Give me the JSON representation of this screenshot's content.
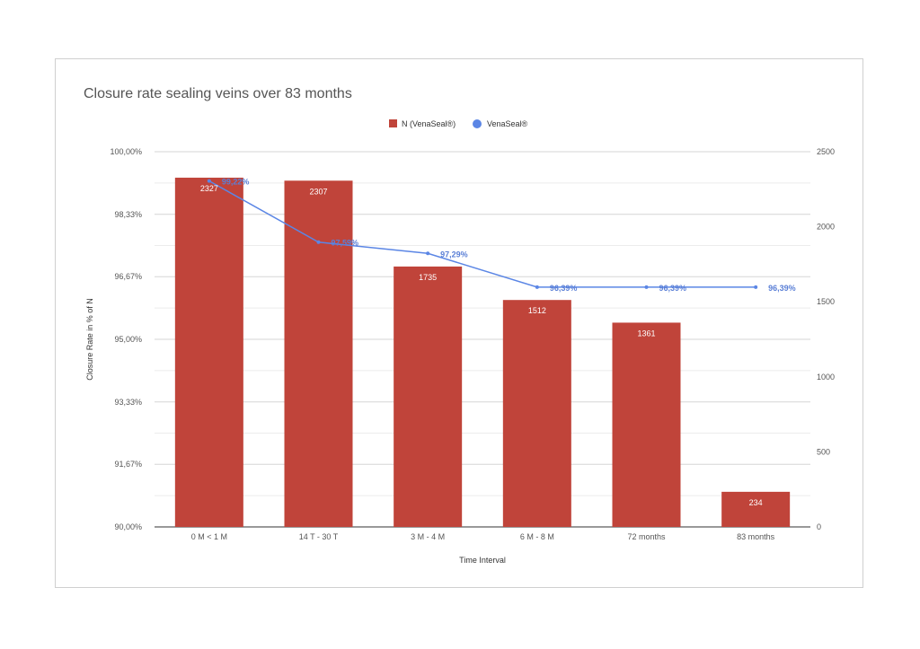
{
  "chart_data": {
    "type": "bar",
    "title": "Closure rate sealing veins over 83 months",
    "xlabel": "Time Interval",
    "ylabel": "Closure Rate in % of N",
    "categories": [
      "0 M < 1 M",
      "14 T - 30 T",
      "3 M - 4 M",
      "6 M - 8 M",
      "72 months",
      "83 months"
    ],
    "series": [
      {
        "name": "N (VenaSeal®)",
        "kind": "bar",
        "axis": "right",
        "color": "#c0443a",
        "values": [
          2327,
          2307,
          1735,
          1512,
          1361,
          234
        ],
        "labels": [
          "2327",
          "2307",
          "1735",
          "1512",
          "1361",
          "234"
        ]
      },
      {
        "name": "VenaSeal®",
        "kind": "line",
        "axis": "left",
        "color": "#5b86e5",
        "values": [
          99.22,
          97.59,
          97.29,
          96.39,
          96.39,
          96.39
        ],
        "labels": [
          "99,22%",
          "97,59%",
          "97,29%",
          "96,39%",
          "96,39%",
          "96,39%"
        ]
      }
    ],
    "left_axis": {
      "range": [
        90,
        100
      ],
      "ticks": [
        90,
        91.67,
        93.33,
        95,
        96.67,
        98.33,
        100
      ],
      "tick_labels": [
        "90,00%",
        "91,67%",
        "93,33%",
        "95,00%",
        "96,67%",
        "98,33%",
        "100,00%"
      ]
    },
    "right_axis": {
      "range": [
        0,
        2500
      ],
      "ticks": [
        0,
        500,
        1000,
        1500,
        2000,
        2500
      ],
      "tick_labels": [
        "0",
        "500",
        "1000",
        "1500",
        "2000",
        "2500"
      ]
    },
    "legend_position": "top-center",
    "grid": true
  }
}
